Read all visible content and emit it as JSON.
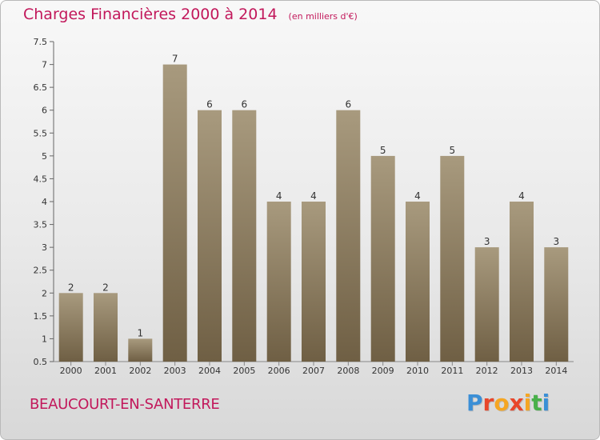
{
  "title": "Charges Financières 2000 à 2014",
  "unit": "(en milliers d'€)",
  "commune": "BEAUCOURT-EN-SANTERRE",
  "logo": {
    "letters": [
      "P",
      "r",
      "o",
      "x",
      "i",
      "t",
      "i"
    ],
    "colors": [
      "#3b8fd6",
      "#e8462a",
      "#f5a623",
      "#e8462a",
      "#f5a623",
      "#48b04a",
      "#3b8fd6"
    ]
  },
  "colors": {
    "bar_top": "#a89a7e",
    "bar_bottom": "#6f5f44",
    "title": "#c2185b"
  },
  "chart_data": {
    "type": "bar",
    "title": "Charges Financières 2000 à 2014",
    "categories": [
      "2000",
      "2001",
      "2002",
      "2003",
      "2004",
      "2005",
      "2006",
      "2007",
      "2008",
      "2009",
      "2010",
      "2011",
      "2012",
      "2013",
      "2014"
    ],
    "values": [
      2,
      2,
      1,
      7,
      6,
      6,
      4,
      4,
      6,
      5,
      4,
      5,
      3,
      4,
      3
    ],
    "value_labels": [
      "2",
      "2",
      "1",
      "7",
      "6",
      "6",
      "4",
      "4",
      "6",
      "5",
      "4",
      "5",
      "3",
      "4",
      "3"
    ],
    "ylim": [
      0.5,
      7.5
    ],
    "y_ticks": [
      "0.5",
      "1",
      "1.5",
      "2",
      "2.5",
      "3",
      "3.5",
      "4",
      "4.5",
      "5",
      "5.5",
      "6",
      "6.5",
      "7",
      "7.5"
    ],
    "grid": false
  }
}
